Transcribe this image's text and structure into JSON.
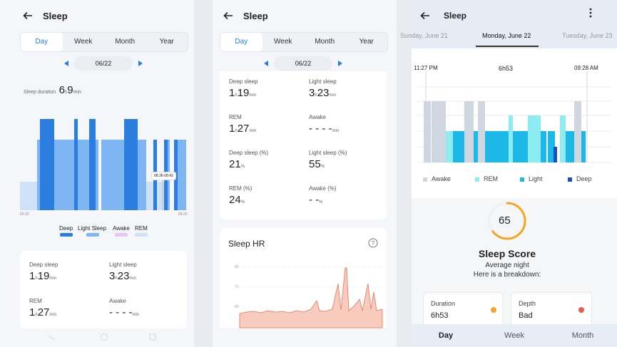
{
  "panel1": {
    "title": "Sleep",
    "tabs": [
      "Day",
      "Week",
      "Month",
      "Year"
    ],
    "date": "06/22",
    "duration_label": "Sleep duration",
    "duration_value": "6",
    "duration_sub1": "h",
    "duration_value2": "9",
    "duration_sub2": "min",
    "tooltip": "08:36-08:43",
    "time_start": "02:23",
    "time_end": "09:20",
    "legend": [
      "Deep",
      "Light Sleep",
      "Awake",
      "REM"
    ],
    "colors": {
      "deep": "#2b7de0",
      "light": "#7db6f2",
      "awake": "#e8c6f2",
      "rem": "#cfe1f7"
    },
    "stats": {
      "deep_label": "Deep sleep",
      "deep_h": "1",
      "deep_m": "19",
      "light_label": "Light sleep",
      "light_h": "3",
      "light_m": "23",
      "rem_label": "REM",
      "rem_h": "1",
      "rem_m": "27",
      "awake_label": "Awake",
      "awake_v": "- - - -"
    },
    "unit_h": "h",
    "unit_min": "min"
  },
  "panel2": {
    "title": "Sleep",
    "tabs": [
      "Day",
      "Week",
      "Month",
      "Year"
    ],
    "date": "06/22",
    "deep_label": "Deep sleep",
    "deep_h": "1",
    "deep_m": "19",
    "light_label": "Light sleep",
    "light_h": "3",
    "light_m": "23",
    "rem_label": "REM",
    "rem_h": "1",
    "rem_m": "27",
    "awake_label": "Awake",
    "awake_v": "- - - -",
    "deep_pct_label": "Deep sleep (%)",
    "deep_pct": "21",
    "light_pct_label": "Light sleep (%)",
    "light_pct": "55",
    "rem_pct_label": "REM (%)",
    "rem_pct": "24",
    "awake_pct_label": "Awake (%)",
    "awake_pct": "- -",
    "pct": "%",
    "unit_h": "h",
    "unit_min": "min",
    "hr_title": "Sleep HR",
    "hr_ticks": [
      "82",
      "71",
      "60"
    ],
    "hr_color": "#e9896e"
  },
  "panel3": {
    "title": "Sleep",
    "date_prev": "Sunday, June 21",
    "date_current": "Monday, June 22",
    "date_next": "Tuesday, June 23",
    "time_start": "11:27 PM",
    "duration": "6h53",
    "time_end": "09:28 AM",
    "legend": [
      "Awake",
      "REM",
      "Light",
      "Deep"
    ],
    "colors": {
      "awake": "#cfd6df",
      "rem": "#8cecf2",
      "light": "#1cb8e8",
      "deep": "#1a4fc4",
      "accent": "#f5a623"
    },
    "score": "65",
    "score_title": "Sleep Score",
    "score_sub1": "Average night",
    "score_sub2": "Here is a breakdown:",
    "duration_card_label": "Duration",
    "duration_card_value": "6h53",
    "depth_card_label": "Depth",
    "depth_card_value": "Bad",
    "tabs": [
      "Day",
      "Week",
      "Month"
    ]
  }
}
